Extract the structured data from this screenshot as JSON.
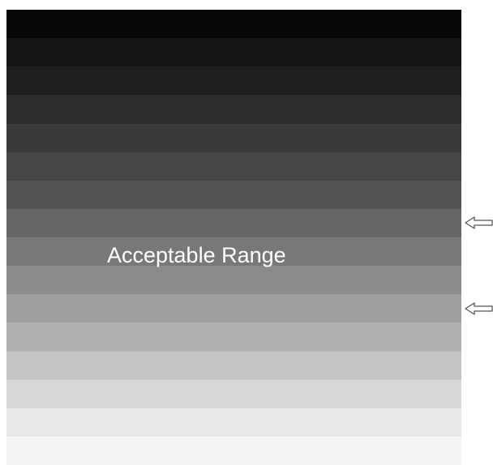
{
  "header": {
    "cropped_text": ""
  },
  "grayscale_steps": {
    "count": 16,
    "colors": [
      "#070707",
      "#151515",
      "#202020",
      "#2c2c2c",
      "#3a3a3a",
      "#464646",
      "#545454",
      "#666666",
      "#787878",
      "#8b8b8b",
      "#9e9e9e",
      "#b0b0b0",
      "#c4c4c4",
      "#d7d7d7",
      "#e8e8e8",
      "#f5f5f5"
    ]
  },
  "label": {
    "text": "Acceptable Range"
  },
  "markers": [
    {
      "name": "upper-limit-arrow",
      "icon": "left-arrow-outline-icon",
      "at_step": 8
    },
    {
      "name": "lower-limit-arrow",
      "icon": "left-arrow-outline-icon",
      "at_step": 11
    }
  ]
}
